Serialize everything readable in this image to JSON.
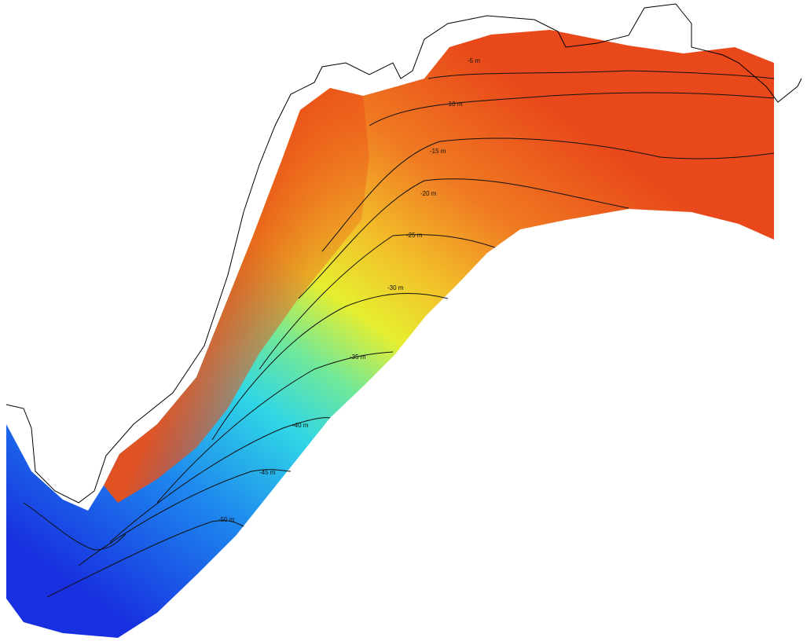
{
  "map": {
    "contours": [
      {
        "label": "-5 m"
      },
      {
        "label": "-10 m"
      },
      {
        "label": "-15 m"
      },
      {
        "label": "-20 m"
      },
      {
        "label": "-25 m"
      },
      {
        "label": "-30 m"
      },
      {
        "label": "-35 m"
      },
      {
        "label": "-40 m"
      },
      {
        "label": "-45 m"
      },
      {
        "label": "-50 m"
      }
    ]
  }
}
